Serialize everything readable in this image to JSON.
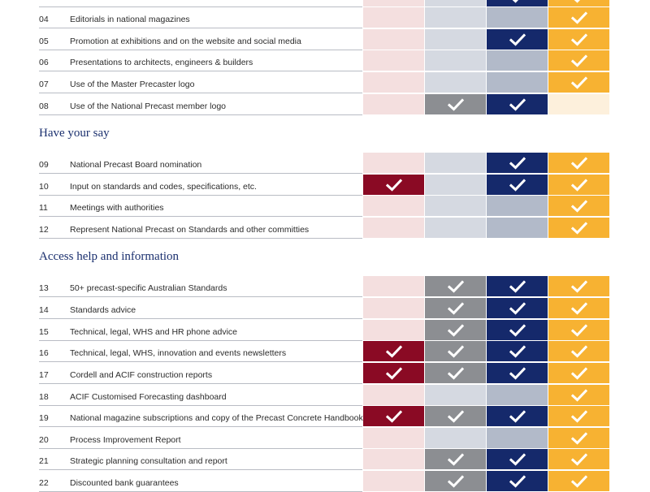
{
  "sections": [
    {
      "heading": "",
      "top": -12,
      "rows": [
        {
          "num": "",
          "label": "",
          "cells": [
            false,
            false,
            true,
            true
          ]
        },
        {
          "num": "04",
          "label": "Editorials in national magazines",
          "cells": [
            false,
            false,
            false,
            true
          ]
        },
        {
          "num": "05",
          "label": "Promotion at exhibitions and on the website and social media",
          "cells": [
            false,
            false,
            true,
            true
          ]
        },
        {
          "num": "06",
          "label": "Presentations to architects, engineers & builders",
          "cells": [
            false,
            false,
            false,
            true
          ]
        },
        {
          "num": "07",
          "label": "Use of the Master Precaster logo",
          "cells": [
            false,
            false,
            false,
            true
          ]
        },
        {
          "num": "08",
          "label": "Use of the National Precast member logo",
          "cells": [
            false,
            true,
            true,
            false
          ]
        }
      ]
    },
    {
      "heading": "Have your say",
      "rows": [
        {
          "num": "09",
          "label": "National Precast Board nomination",
          "cells": [
            false,
            false,
            true,
            true
          ]
        },
        {
          "num": "10",
          "label": "Input on standards and codes, specifications, etc.",
          "cells": [
            true,
            false,
            true,
            true
          ]
        },
        {
          "num": "11",
          "label": "Meetings with authorities",
          "cells": [
            false,
            false,
            false,
            true
          ]
        },
        {
          "num": "12",
          "label": "Represent National Precast on Standards and other committies",
          "cells": [
            false,
            false,
            false,
            true
          ]
        }
      ]
    },
    {
      "heading": "Access help and information",
      "rows": [
        {
          "num": "13",
          "label": "50+ precast-specific Australian Standards",
          "cells": [
            false,
            true,
            true,
            true
          ]
        },
        {
          "num": "14",
          "label": "Standards advice",
          "cells": [
            false,
            true,
            true,
            true
          ]
        },
        {
          "num": "15",
          "label": "Technical, legal, WHS and HR phone advice",
          "cells": [
            false,
            true,
            true,
            true
          ]
        },
        {
          "num": "16",
          "label": "Technical, legal, WHS, innovation and events newsletters",
          "cells": [
            true,
            true,
            true,
            true
          ]
        },
        {
          "num": "17",
          "label": "Cordell and ACIF construction reports",
          "cells": [
            true,
            true,
            true,
            true
          ]
        },
        {
          "num": "18",
          "label": "ACIF Customised Forecasting dashboard",
          "cells": [
            false,
            false,
            false,
            true
          ]
        },
        {
          "num": "19",
          "label": "National magazine subscriptions and copy of the Precast Concrete Handbook",
          "cells": [
            true,
            true,
            true,
            true
          ]
        },
        {
          "num": "20",
          "label": "Process Improvement Report",
          "cells": [
            false,
            false,
            false,
            true
          ]
        },
        {
          "num": "21",
          "label": "Strategic planning consultation and report",
          "cells": [
            false,
            true,
            true,
            true
          ]
        },
        {
          "num": "22",
          "label": "Discounted bank guarantees",
          "cells": [
            false,
            true,
            true,
            true
          ]
        }
      ]
    }
  ]
}
